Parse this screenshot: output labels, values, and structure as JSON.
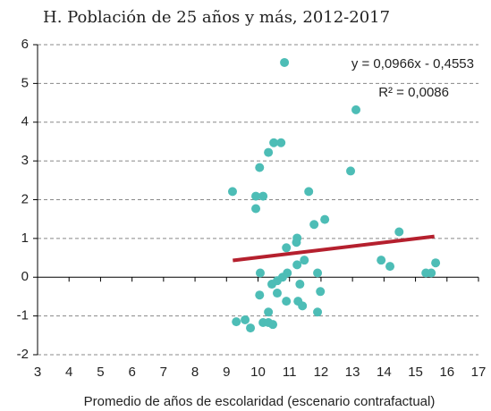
{
  "chart_data": {
    "type": "scatter",
    "title": "H. Población de 25 años y más, 2012-2017",
    "x_label": "Promedio de años de escolaridad (escenario contrafactual)",
    "annotations": [
      "y = 0,0966x - 0,4553",
      "R² = 0,0086"
    ],
    "color": "#4dbdb6",
    "x": [
      10.84,
      13.11,
      12.94,
      10.5,
      10.73,
      10.33,
      10.05,
      9.19,
      9.93,
      10.16,
      9.93,
      11.61,
      12.12,
      11.78,
      11.24,
      11.22,
      14.48,
      10.9,
      13.91,
      14.19,
      11.47,
      11.24,
      11.89,
      10.07,
      10.93,
      10.78,
      10.61,
      10.44,
      11.33,
      10.05,
      10.61,
      11.98,
      10.9,
      11.27,
      11.41,
      10.33,
      11.89,
      9.31,
      9.59,
      9.76,
      10.16,
      10.33,
      10.47,
      15.33,
      15.5,
      15.64
    ],
    "values": [
      5.54,
      4.32,
      2.74,
      3.47,
      3.47,
      3.22,
      2.83,
      2.21,
      2.09,
      2.09,
      1.77,
      2.21,
      1.49,
      1.36,
      1.01,
      0.9,
      1.17,
      0.76,
      0.44,
      0.28,
      0.44,
      0.32,
      0.11,
      0.11,
      0.11,
      0,
      -0.09,
      -0.18,
      -0.18,
      -0.46,
      -0.41,
      -0.37,
      -0.62,
      -0.62,
      -0.74,
      -0.9,
      -0.9,
      -1.15,
      -1.1,
      -1.31,
      -1.17,
      -1.17,
      -1.22,
      0.11,
      0.11,
      0.37
    ],
    "trend_line": {
      "color": "#b5202e",
      "x": [
        9.2,
        15.6
      ],
      "values": [
        0.433,
        1.052
      ]
    },
    "xlim": [
      3,
      17
    ],
    "xticks": [
      3,
      4,
      5,
      6,
      7,
      8,
      9,
      10,
      11,
      12,
      13,
      14,
      15,
      16,
      17
    ],
    "ylim": [
      -2,
      6
    ],
    "yticks": [
      -2,
      -1,
      0,
      1,
      2,
      3,
      4,
      5,
      6
    ],
    "grid": true
  }
}
